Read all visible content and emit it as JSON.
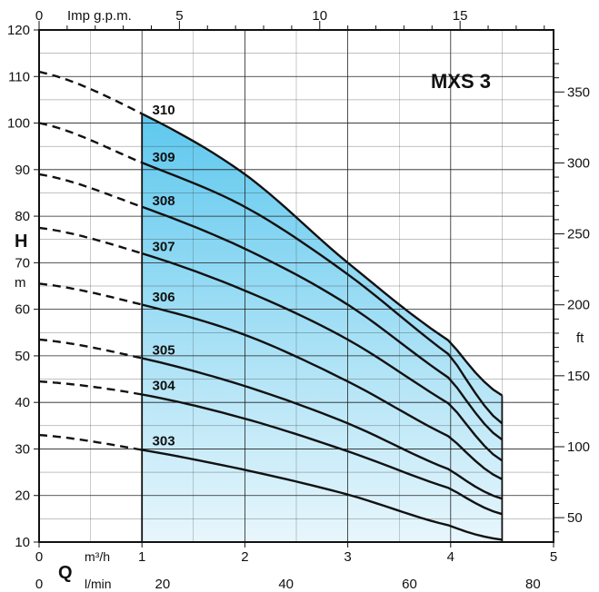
{
  "chart_data": {
    "type": "line",
    "title": "MXS 3",
    "ylabel": "H",
    "ylabel_unit": "m",
    "y2label": "ft",
    "xlabel": "Q",
    "x_unit": "m³/h",
    "x2_unit": "l/min",
    "xtop_unit": "Imp g.p.m.",
    "xlim": [
      0,
      5
    ],
    "ylim": [
      10,
      120
    ],
    "x_ticks": [
      "0",
      "1",
      "2",
      "3",
      "4",
      "5"
    ],
    "x2_ticks": [
      "0",
      "20",
      "40",
      "60",
      "80"
    ],
    "xtop_ticks": [
      "0",
      "5",
      "10",
      "15"
    ],
    "y_ticks": [
      "10",
      "20",
      "30",
      "40",
      "50",
      "60",
      "70",
      "80",
      "90",
      "100",
      "110",
      "120"
    ],
    "y2_ticks": [
      "50",
      "100",
      "150",
      "200",
      "250",
      "300",
      "350"
    ],
    "operating_range": [
      1,
      4.5
    ],
    "grid": true,
    "series": [
      {
        "name": "303",
        "x": [
          0,
          1,
          2,
          3,
          4,
          4.5
        ],
        "y": [
          33,
          29.8,
          25.5,
          20.2,
          13.5,
          10.5
        ]
      },
      {
        "name": "304",
        "x": [
          0,
          1,
          2,
          3,
          4,
          4.5
        ],
        "y": [
          44.5,
          41.7,
          36.5,
          29.5,
          21.5,
          16
        ]
      },
      {
        "name": "305",
        "x": [
          0,
          1,
          2,
          3,
          4,
          4.5
        ],
        "y": [
          53.5,
          49.5,
          43.5,
          35.5,
          25.5,
          19.3
        ]
      },
      {
        "name": "306",
        "x": [
          0,
          1,
          2,
          3,
          4,
          4.5
        ],
        "y": [
          65.5,
          61,
          54.5,
          44.5,
          32.5,
          23.5
        ]
      },
      {
        "name": "307",
        "x": [
          0,
          1,
          2,
          3,
          4,
          4.5
        ],
        "y": [
          77.5,
          72,
          64,
          53.5,
          39.5,
          27.5
        ]
      },
      {
        "name": "308",
        "x": [
          0,
          1,
          2,
          3,
          4,
          4.5
        ],
        "y": [
          89,
          82,
          73,
          61,
          45,
          32
        ]
      },
      {
        "name": "309",
        "x": [
          0,
          1,
          2,
          3,
          4,
          4.5
        ],
        "y": [
          100,
          91.5,
          82,
          67.5,
          50,
          35.5
        ]
      },
      {
        "name": "310",
        "x": [
          0,
          1,
          2,
          3,
          4,
          4.5
        ],
        "y": [
          111,
          102,
          89,
          70,
          53,
          41.5
        ]
      }
    ]
  },
  "colors": {
    "fill_top": "#5ec8ee",
    "fill_bottom": "#e8f6fc",
    "grid": "#222222",
    "curve": "#111111"
  }
}
